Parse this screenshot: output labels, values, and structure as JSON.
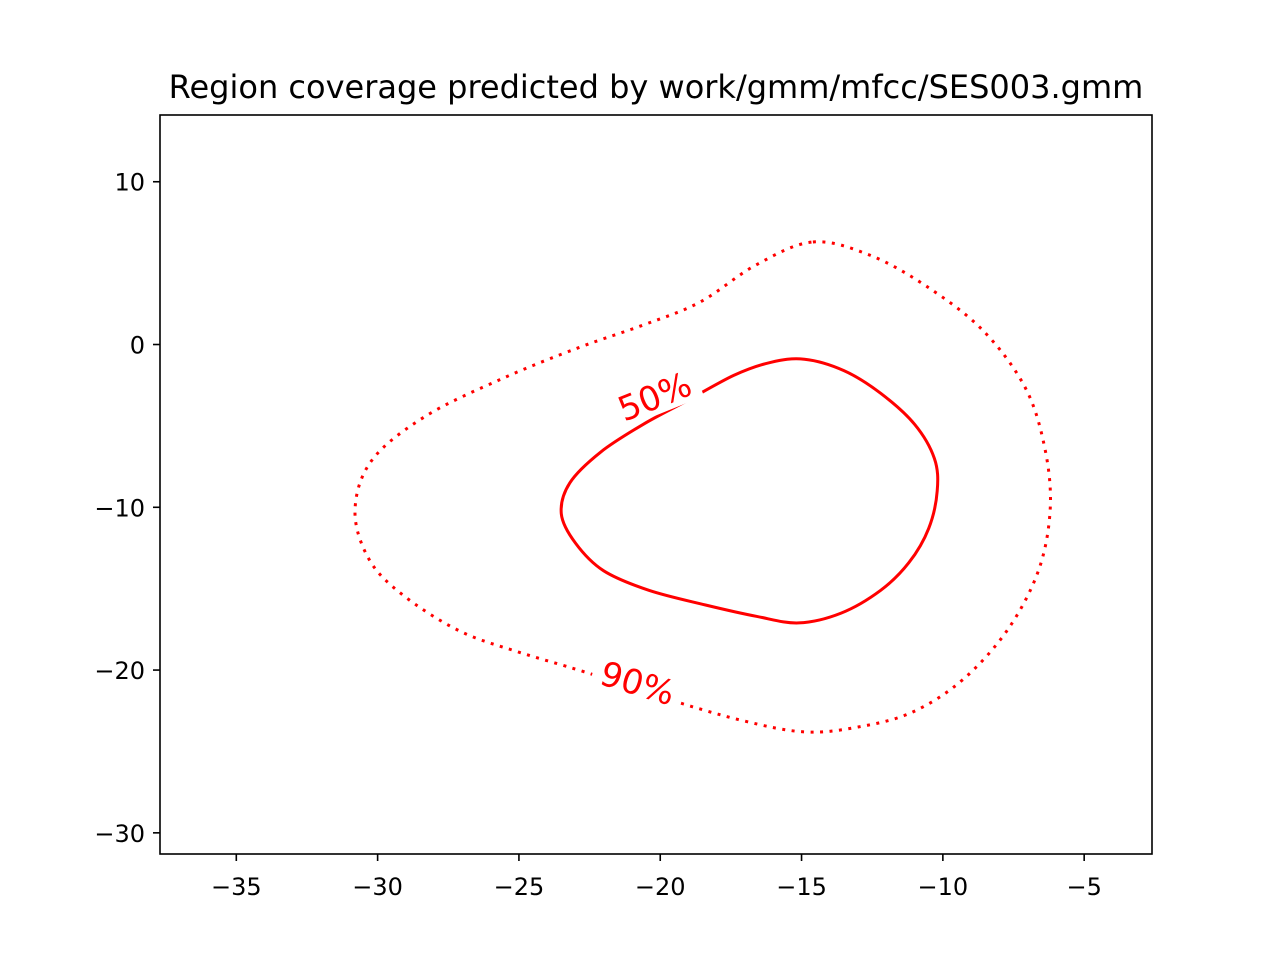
{
  "chart_data": {
    "type": "contour",
    "title": "Region coverage predicted by work/gmm/mfcc/SES003.gmm",
    "xlabel": "",
    "ylabel": "",
    "xlim": [
      -37.7,
      -2.6
    ],
    "ylim": [
      -31.3,
      14.1
    ],
    "xticks": [
      -35,
      -30,
      -25,
      -20,
      -15,
      -10,
      -5
    ],
    "xtick_labels": [
      "−35",
      "−30",
      "−25",
      "−20",
      "−15",
      "−10",
      "−5"
    ],
    "yticks": [
      10,
      0,
      -10,
      -20,
      -30
    ],
    "ytick_labels": [
      "10",
      "0",
      "−10",
      "−20",
      "−30"
    ],
    "grid": false,
    "color": "#ff0000",
    "series": [
      {
        "name": "50%",
        "label_text": "50%",
        "linestyle": "solid",
        "label_at": [
          -20.2,
          -3.2
        ],
        "label_angle": -22,
        "points": [
          [
            -14.9,
            -0.9
          ],
          [
            -13.5,
            -1.6
          ],
          [
            -12.2,
            -3.0
          ],
          [
            -11.0,
            -4.9
          ],
          [
            -10.3,
            -7.0
          ],
          [
            -10.2,
            -9.0
          ],
          [
            -10.5,
            -11.3
          ],
          [
            -11.2,
            -13.4
          ],
          [
            -12.2,
            -15.1
          ],
          [
            -13.6,
            -16.5
          ],
          [
            -15.1,
            -17.1
          ],
          [
            -16.6,
            -16.7
          ],
          [
            -18.4,
            -16.0
          ],
          [
            -20.4,
            -15.1
          ],
          [
            -22.0,
            -13.9
          ],
          [
            -23.0,
            -12.2
          ],
          [
            -23.5,
            -10.4
          ],
          [
            -23.2,
            -8.5
          ],
          [
            -22.1,
            -6.6
          ],
          [
            -20.6,
            -4.9
          ],
          [
            -19.1,
            -3.5
          ],
          [
            -17.4,
            -1.9
          ],
          [
            -16.1,
            -1.1
          ]
        ]
      },
      {
        "name": "90%",
        "label_text": "90%",
        "linestyle": "dotted",
        "label_at": [
          -20.8,
          -20.8
        ],
        "label_angle": 17,
        "points": [
          [
            -14.6,
            6.3
          ],
          [
            -12.6,
            5.5
          ],
          [
            -10.6,
            3.6
          ],
          [
            -8.6,
            0.9
          ],
          [
            -7.1,
            -2.6
          ],
          [
            -6.4,
            -6.3
          ],
          [
            -6.2,
            -10.0
          ],
          [
            -6.6,
            -13.8
          ],
          [
            -7.7,
            -17.5
          ],
          [
            -9.3,
            -20.6
          ],
          [
            -11.1,
            -22.6
          ],
          [
            -13.0,
            -23.5
          ],
          [
            -14.9,
            -23.8
          ],
          [
            -17.1,
            -23.1
          ],
          [
            -19.9,
            -21.7
          ],
          [
            -22.7,
            -20.1
          ],
          [
            -25.0,
            -18.9
          ],
          [
            -27.1,
            -17.6
          ],
          [
            -29.1,
            -15.4
          ],
          [
            -30.3,
            -13.2
          ],
          [
            -30.8,
            -10.2
          ],
          [
            -30.2,
            -7.1
          ],
          [
            -28.3,
            -4.4
          ],
          [
            -25.6,
            -2.1
          ],
          [
            -22.9,
            -0.2
          ],
          [
            -20.6,
            1.2
          ],
          [
            -18.6,
            2.6
          ],
          [
            -16.6,
            4.9
          ]
        ]
      }
    ]
  }
}
